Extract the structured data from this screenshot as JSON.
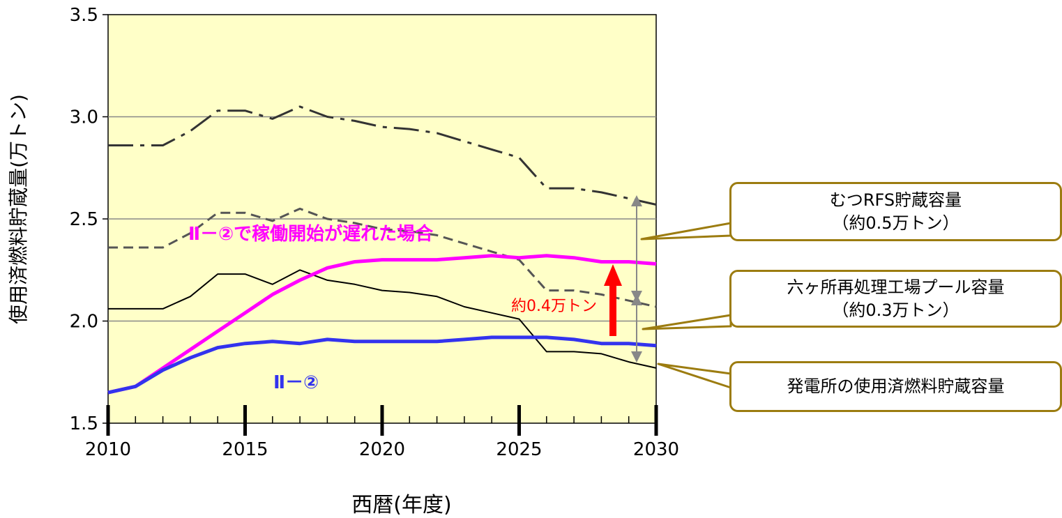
{
  "chart_data": {
    "type": "line",
    "xlabel": "西暦(年度)",
    "ylabel": "使用済燃料貯蔵量(万トン)",
    "xlim": [
      2010,
      2030
    ],
    "ylim": [
      1.5,
      3.5
    ],
    "x_ticks": [
      2010,
      2015,
      2020,
      2025,
      2030
    ],
    "y_ticks": [
      "1.5",
      "2.0",
      "2.5",
      "3.0",
      "3.5"
    ],
    "grid": "horizontal",
    "background": "#ffffc8",
    "x": [
      2010,
      2011,
      2012,
      2013,
      2014,
      2015,
      2016,
      2017,
      2018,
      2019,
      2020,
      2021,
      2022,
      2023,
      2024,
      2025,
      2026,
      2027,
      2028,
      2029,
      2030
    ],
    "series": [
      {
        "style": "dashdot",
        "color": "#333333",
        "values": [
          2.86,
          2.86,
          2.86,
          2.93,
          3.03,
          3.03,
          2.99,
          3.05,
          3.0,
          2.98,
          2.95,
          2.94,
          2.92,
          2.88,
          2.84,
          2.8,
          2.65,
          2.65,
          2.63,
          2.6,
          2.57
        ]
      },
      {
        "style": "dashed",
        "color": "#555555",
        "values": [
          2.36,
          2.36,
          2.36,
          2.43,
          2.53,
          2.53,
          2.49,
          2.55,
          2.5,
          2.48,
          2.45,
          2.44,
          2.42,
          2.38,
          2.34,
          2.3,
          2.15,
          2.15,
          2.13,
          2.1,
          2.07
        ]
      },
      {
        "style": "solid-thin",
        "color": "#000000",
        "values": [
          2.06,
          2.06,
          2.06,
          2.12,
          2.23,
          2.23,
          2.18,
          2.25,
          2.2,
          2.18,
          2.15,
          2.14,
          2.12,
          2.07,
          2.04,
          2.01,
          1.85,
          1.85,
          1.84,
          1.8,
          1.77
        ]
      },
      {
        "name": "Ⅱ－②で稼働開始が遅れた場合",
        "style": "solid-thick",
        "color": "#ff00ff",
        "values": [
          1.65,
          1.68,
          1.77,
          1.86,
          1.95,
          2.04,
          2.13,
          2.2,
          2.26,
          2.29,
          2.3,
          2.3,
          2.3,
          2.31,
          2.32,
          2.31,
          2.32,
          2.31,
          2.29,
          2.29,
          2.28
        ]
      },
      {
        "name": "Ⅱ－②",
        "style": "solid-thick",
        "color": "#3333ee",
        "values": [
          1.65,
          1.68,
          1.76,
          1.82,
          1.87,
          1.89,
          1.9,
          1.89,
          1.91,
          1.9,
          1.9,
          1.9,
          1.9,
          1.91,
          1.92,
          1.92,
          1.92,
          1.91,
          1.89,
          1.89,
          1.88
        ]
      }
    ],
    "annotations": [
      {
        "text": "Ⅱ－②で稼働開始が遅れた場合",
        "color": "#ff00ff"
      },
      {
        "text": "Ⅱ－②",
        "color": "#3333ee"
      },
      {
        "text": "約0.4万トン",
        "color": "#ff0000"
      }
    ]
  },
  "callouts": [
    {
      "line1": "むつRFS貯蔵容量",
      "line2": "（約0.5万トン）"
    },
    {
      "line1": "六ヶ所再処理工場プール容量",
      "line2": "（約0.3万トン）"
    },
    {
      "line1": "発電所の使用済燃料貯蔵容量",
      "line2": ""
    }
  ],
  "colors": {
    "callout_border": "#9c7c10",
    "arrow_red": "#ff0000",
    "arrow_gray": "#888888"
  }
}
